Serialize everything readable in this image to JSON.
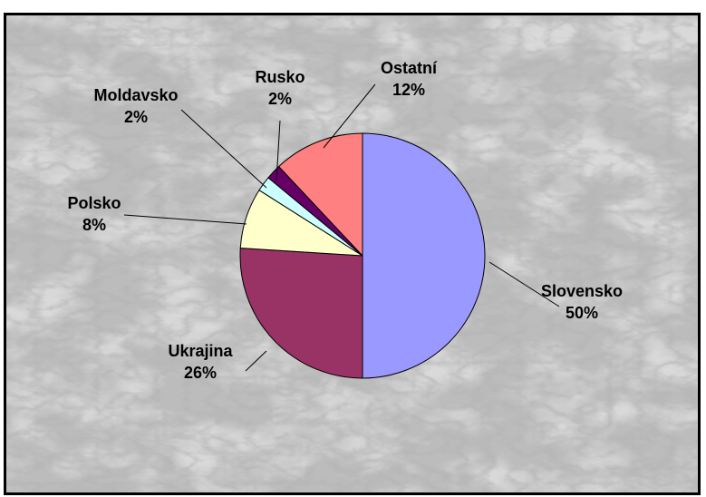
{
  "chart_data": {
    "type": "pie",
    "title": "",
    "slices": [
      {
        "label": "Slovensko",
        "value": 50,
        "value_label": "50%",
        "color": "#9999ff"
      },
      {
        "label": "Ukrajina",
        "value": 26,
        "value_label": "26%",
        "color": "#993366"
      },
      {
        "label": "Polsko",
        "value": 8,
        "value_label": "8%",
        "color": "#ffffcc"
      },
      {
        "label": "Moldavsko",
        "value": 2,
        "value_label": "2%",
        "color": "#ccffff"
      },
      {
        "label": "Rusko",
        "value": 2,
        "value_label": "2%",
        "color": "#660066"
      },
      {
        "label": "Ostatní",
        "value": 12,
        "value_label": "12%",
        "color": "#ff8080"
      }
    ],
    "start_angle": "12 o'clock",
    "direction": "clockwise",
    "legend": "none",
    "background": "white marble texture"
  }
}
